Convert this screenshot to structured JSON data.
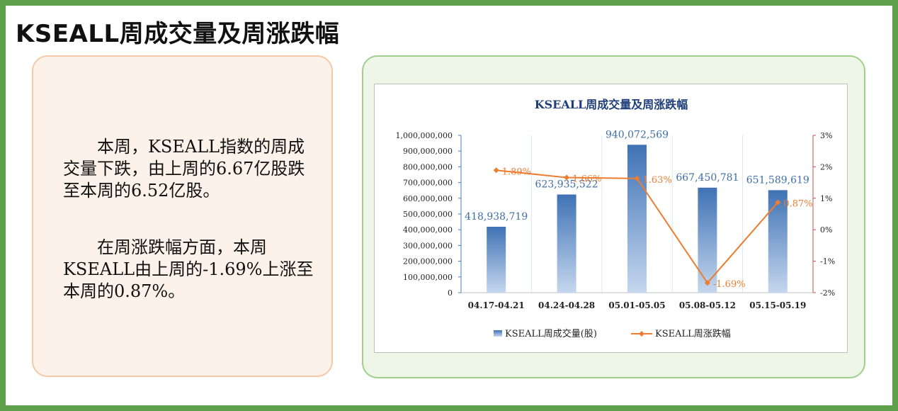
{
  "page": {
    "title": "KSEALL周成交量及周涨跌幅",
    "paragraph1": "本周，KSEALL指数的周成交量下跌，由上周的6.67亿股跌至本周的6.52亿股。",
    "paragraph2": "在周涨跌幅方面，本周KSEALL由上周的-1.69%上涨至本周的0.87%。"
  },
  "colors": {
    "bar": "#4a7ebb",
    "line": "#ed7d31",
    "frame": "#5fa04b",
    "title_blue": "#1f3f7a"
  },
  "chart_data": {
    "type": "bar",
    "title": "KSEALL周成交量及周涨跌幅",
    "categories": [
      "04.17-04.21",
      "04.24-04.28",
      "05.01-05.05",
      "05.08-05.12",
      "05.15-05.19"
    ],
    "series": [
      {
        "name": "KSEALL周成交量(股)",
        "type": "bar",
        "axis": "left",
        "values": [
          418938719,
          623935522,
          940072569,
          667450781,
          651589619
        ],
        "labels": [
          "418,938,719",
          "623,935,522",
          "940,072,569",
          "667,450,781",
          "651,589,619"
        ]
      },
      {
        "name": "KSEALL周涨跌幅",
        "type": "line",
        "axis": "right",
        "values": [
          1.89,
          1.66,
          1.63,
          -1.69,
          0.87
        ],
        "labels": [
          "1.89%",
          "1.66%",
          "1.63%",
          "-1.69%",
          "0.87%"
        ]
      }
    ],
    "ylim_left": [
      0,
      1000000000
    ],
    "yticks_left": [
      "1,000,000,000",
      "900,000,000",
      "800,000,000",
      "700,000,000",
      "600,000,000",
      "500,000,000",
      "400,000,000",
      "300,000,000",
      "200,000,000",
      "100,000,000",
      "0"
    ],
    "ylim_right": [
      -2,
      3
    ],
    "yticks_right": [
      "3%",
      "2%",
      "1%",
      "0%",
      "-1%",
      "-2%"
    ],
    "legend_position": "bottom",
    "grid": "vertical"
  }
}
